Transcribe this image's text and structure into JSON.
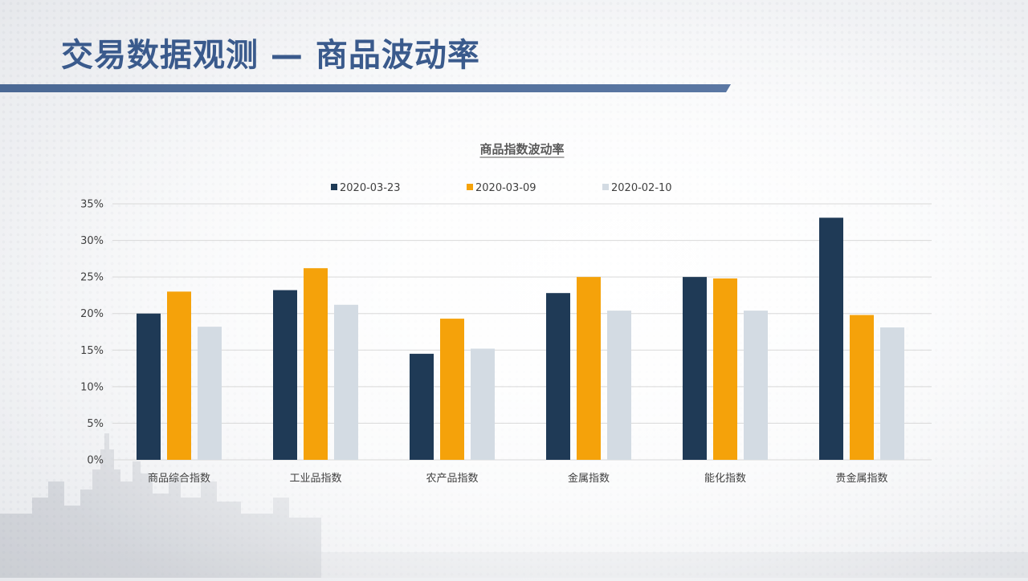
{
  "page": {
    "title": "交易数据观测 — 商品波动率"
  },
  "colors": {
    "title": "#3a5a8c",
    "title_bar": "#4a6894",
    "series": [
      "#1f3a56",
      "#f5a20a",
      "#d3dbe3"
    ],
    "grid": "#d9d9d9",
    "text": "#404040",
    "chart_title": "#595959"
  },
  "chart_data": {
    "type": "bar",
    "title": "商品指数波动率",
    "categories": [
      "商品综合指数",
      "工业品指数",
      "农产品指数",
      "金属指数",
      "能化指数",
      "贵金属指数"
    ],
    "series": [
      {
        "name": "2020-03-23",
        "values": [
          20.0,
          23.2,
          14.5,
          22.8,
          25.0,
          33.1
        ]
      },
      {
        "name": "2020-03-09",
        "values": [
          23.0,
          26.2,
          19.3,
          25.0,
          24.8,
          19.8
        ]
      },
      {
        "name": "2020-02-10",
        "values": [
          18.2,
          21.2,
          15.2,
          20.4,
          20.4,
          18.1
        ]
      }
    ],
    "ylim": [
      0,
      35
    ],
    "yticks": [
      0,
      5,
      10,
      15,
      20,
      25,
      30,
      35
    ],
    "ytick_labels": [
      "0%",
      "5%",
      "10%",
      "15%",
      "20%",
      "25%",
      "30%",
      "35%"
    ],
    "xlabel": "",
    "ylabel": "",
    "grid": true,
    "legend_position": "top"
  }
}
